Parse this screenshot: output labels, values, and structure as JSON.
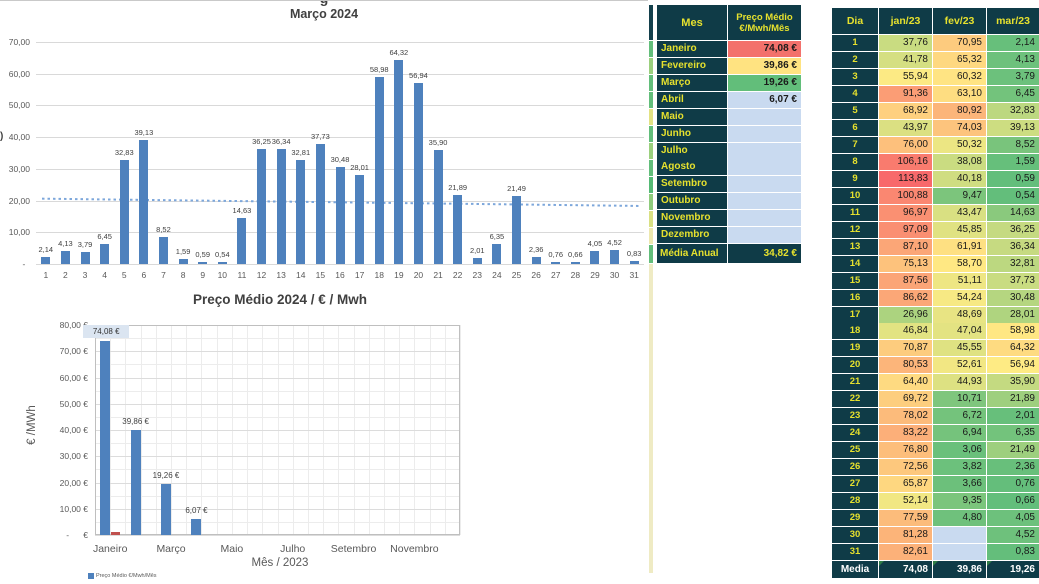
{
  "colors": {
    "bar_blue": "#4E81BD",
    "bar_red": "#C0504D",
    "trend_blue": "#7DA7DB",
    "grid": "#D9D9D9",
    "dark_cell": "#0F3B47",
    "yellow_text": "#E6E12E",
    "empty_cell": "#C9DAF0",
    "scale_min_color": "#63BE7B",
    "scale_mid_color": "#FFEB84",
    "scale_max_color": "#F8696B",
    "scale_min": 0.54,
    "scale_mid": 57.19,
    "scale_max": 113.83,
    "label_gray": "#595959",
    "value_gray": "#404040",
    "comment_triangle": "#2F7D46",
    "media_text": "#FFFFFF"
  },
  "chart_data": [
    {
      "id": "daily-march-2024",
      "type": "bar",
      "title_clipped": "g",
      "title": "Março 2024",
      "x": [
        1,
        2,
        3,
        4,
        5,
        6,
        7,
        8,
        9,
        10,
        11,
        12,
        13,
        14,
        15,
        16,
        17,
        18,
        19,
        20,
        21,
        22,
        23,
        24,
        25,
        26,
        27,
        28,
        29,
        30,
        31
      ],
      "values": [
        2.14,
        4.13,
        3.79,
        6.45,
        32.83,
        39.13,
        8.52,
        1.59,
        0.59,
        0.54,
        14.63,
        36.25,
        36.34,
        32.81,
        37.73,
        30.48,
        28.01,
        58.98,
        64.32,
        56.94,
        35.9,
        21.89,
        2.01,
        6.35,
        21.49,
        2.36,
        0.76,
        0.66,
        4.05,
        4.52,
        0.83
      ],
      "ylim": [
        0,
        70
      ],
      "y_ticks": [
        "70,00",
        "60,00",
        "50,00",
        "40,00",
        "30,00",
        "20,00",
        "10,00",
        "-  "
      ],
      "bar_color": "#4E81BD",
      "grid": true,
      "legend_position": "none",
      "trendline": {
        "start": 20.6,
        "end": 18.3,
        "style": "dotted",
        "color": "#7DA7DB"
      }
    },
    {
      "id": "monthly-average-2024",
      "type": "bar",
      "title": "Preço Médio 2024 / € / Mwh",
      "xlabel": "Mês / 2023",
      "ylabel": "€ /MWh",
      "categories": [
        "Janeiro",
        "Fevereiro",
        "Março",
        "Abril",
        "Maio",
        "Junho",
        "Julho",
        "Agosto",
        "Setembro",
        "Outubro",
        "Novembro",
        "Dezembro"
      ],
      "values": [
        74.08,
        39.86,
        19.26,
        6.07,
        null,
        null,
        null,
        null,
        null,
        null,
        null,
        null
      ],
      "secondary_bar": {
        "month_index": 0,
        "value": 1.2,
        "color": "#C0504D"
      },
      "ylim": [
        0,
        80
      ],
      "y_ticks": [
        "80,00 €",
        "70,00 €",
        "60,00 €",
        "50,00 €",
        "40,00 €",
        "30,00 €",
        "20,00 €",
        "10,00 €",
        "-      €"
      ],
      "x_tick_labels_shown": [
        "Janeiro",
        "Março",
        "Maio",
        "Julho",
        "Setembro",
        "Novembro"
      ],
      "legend": [
        "Preço Médio €/Mwh/Mês"
      ],
      "grid": "fine-mesh",
      "first_label_fill": "#DBE5F1"
    }
  ],
  "monthly_table": {
    "header": [
      "Mes",
      "Preço Médio",
      "€/Mwh/Mês"
    ],
    "months": [
      "Janeiro",
      "Fevereiro",
      "Março",
      "Abril",
      "Maio",
      "Junho",
      "Julho",
      "Agosto",
      "Setembro",
      "Outubro",
      "Novembro",
      "Dezembro"
    ],
    "values": [
      74.08,
      39.86,
      19.26,
      6.07,
      null,
      null,
      null,
      null,
      null,
      null,
      null,
      null
    ],
    "fills": [
      "#F3716C",
      "#FFE381",
      "#62BE7A",
      "#C9DAF0",
      "#C9DAF0",
      "#C9DAF0",
      "#C9DAF0",
      "#C9DAF0",
      "#C9DAF0",
      "#C9DAF0",
      "#C9DAF0",
      "#C9DAF0"
    ],
    "footer_label": "Média Anual",
    "footer_value": 34.82
  },
  "daily_table": {
    "headers": [
      "Dia",
      "jan/23",
      "fev/23",
      "mar/23"
    ],
    "rows": [
      [
        1,
        37.76,
        70.95,
        2.14
      ],
      [
        2,
        41.78,
        65.32,
        4.13
      ],
      [
        3,
        55.94,
        60.32,
        3.79
      ],
      [
        4,
        91.36,
        63.1,
        6.45
      ],
      [
        5,
        68.92,
        80.92,
        32.83
      ],
      [
        6,
        43.97,
        74.03,
        39.13
      ],
      [
        7,
        76.0,
        50.32,
        8.52
      ],
      [
        8,
        106.16,
        38.08,
        1.59
      ],
      [
        9,
        113.83,
        40.18,
        0.59
      ],
      [
        10,
        100.88,
        9.47,
        0.54
      ],
      [
        11,
        96.97,
        43.47,
        14.63
      ],
      [
        12,
        97.09,
        45.85,
        36.25
      ],
      [
        13,
        87.1,
        61.91,
        36.34
      ],
      [
        14,
        75.13,
        58.7,
        32.81
      ],
      [
        15,
        87.56,
        51.11,
        37.73
      ],
      [
        16,
        86.62,
        54.24,
        30.48
      ],
      [
        17,
        26.96,
        48.69,
        28.01
      ],
      [
        18,
        46.84,
        47.04,
        58.98
      ],
      [
        19,
        70.87,
        45.55,
        64.32
      ],
      [
        20,
        80.53,
        52.61,
        56.94
      ],
      [
        21,
        64.4,
        44.93,
        35.9
      ],
      [
        22,
        69.72,
        10.71,
        21.89
      ],
      [
        23,
        78.02,
        6.72,
        2.01
      ],
      [
        24,
        83.22,
        6.94,
        6.35
      ],
      [
        25,
        76.8,
        3.06,
        21.49
      ],
      [
        26,
        72.56,
        3.82,
        2.36
      ],
      [
        27,
        65.87,
        3.66,
        0.76
      ],
      [
        28,
        52.14,
        9.35,
        0.66
      ],
      [
        29,
        77.59,
        4.8,
        4.05
      ],
      [
        30,
        81.28,
        null,
        4.52
      ],
      [
        31,
        82.61,
        null,
        0.83
      ]
    ],
    "footer": [
      "Media",
      74.08,
      39.86,
      19.26
    ]
  },
  "strip": {
    "segments": [
      [
        36,
        "#14404C"
      ],
      [
        17,
        "#63BE7B"
      ],
      [
        17,
        "#9BD07E"
      ],
      [
        17,
        "#63BE7B"
      ],
      [
        17,
        "#63BE7B"
      ],
      [
        17,
        "#E2E283"
      ],
      [
        17,
        "#63BE7B"
      ],
      [
        17,
        "#9BD07E"
      ],
      [
        17,
        "#63BE7B"
      ],
      [
        17,
        "#55BA75"
      ],
      [
        17,
        "#8FCC7D"
      ],
      [
        17,
        "#D9E084"
      ],
      [
        17,
        "#EDE8AE"
      ],
      [
        19,
        "#63BE7B"
      ],
      [
        310,
        "#EFEBC4"
      ]
    ]
  }
}
